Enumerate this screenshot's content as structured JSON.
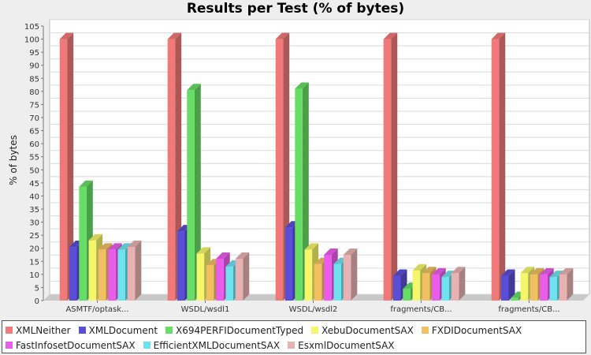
{
  "chart_data": {
    "type": "bar",
    "title": "Results per Test (% of bytes)",
    "xlabel": "",
    "ylabel": "% of bytes",
    "ylim": [
      0,
      105
    ],
    "ytick_step": 5,
    "grid": true,
    "legend_position": "bottom",
    "categories": [
      "ASMTF/optask...",
      "WSDL/wsdl1",
      "WSDL/wsdl2",
      "fragments/CB...",
      "fragments/CB..."
    ],
    "series": [
      {
        "name": "XMLNeither",
        "color": "#f27979",
        "values": [
          100,
          100,
          100,
          100,
          100
        ]
      },
      {
        "name": "XMLDocument",
        "color": "#5a4ed6",
        "values": [
          20.5,
          26.5,
          28,
          9.5,
          9.5
        ]
      },
      {
        "name": "X694PERFIDocumentTyped",
        "color": "#66de66",
        "values": [
          43.5,
          80.5,
          81,
          4.5,
          1
        ]
      },
      {
        "name": "XebuDocumentSAX",
        "color": "#f6f66a",
        "values": [
          23,
          18,
          19.5,
          11.5,
          10.5
        ]
      },
      {
        "name": "FXDIDocumentSAX",
        "color": "#f3bf63",
        "values": [
          19.5,
          13.5,
          14,
          10.5,
          10
        ]
      },
      {
        "name": "FastInfosetDocumentSAX",
        "color": "#ec5cec",
        "values": [
          19.5,
          16,
          17.5,
          10,
          10
        ]
      },
      {
        "name": "EfficientXMLDocumentSAX",
        "color": "#6ee2ee",
        "values": [
          19.5,
          13,
          14,
          9,
          9
        ]
      },
      {
        "name": "EsxmlDocumentSAX",
        "color": "#e8b2b2",
        "values": [
          20.5,
          16,
          17.5,
          10.5,
          10
        ]
      }
    ]
  }
}
